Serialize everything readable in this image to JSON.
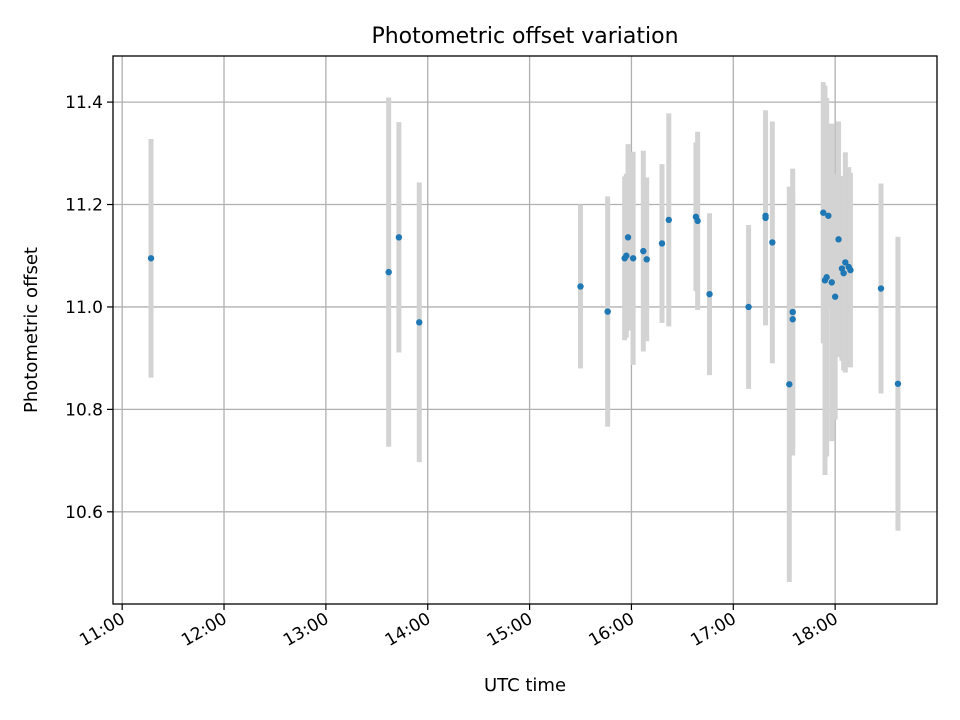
{
  "chart_data": {
    "type": "scatter",
    "title": "Photometric offset variation",
    "xlabel": "UTC time",
    "ylabel": "Photometric offset",
    "xlim_hours": [
      10.91,
      19.0
    ],
    "ylim": [
      10.42,
      11.49
    ],
    "x_ticks": [
      {
        "value": 11,
        "label": "11:00"
      },
      {
        "value": 12,
        "label": "12:00"
      },
      {
        "value": 13,
        "label": "13:00"
      },
      {
        "value": 14,
        "label": "14:00"
      },
      {
        "value": 15,
        "label": "15:00"
      },
      {
        "value": 16,
        "label": "16:00"
      },
      {
        "value": 17,
        "label": "17:00"
      },
      {
        "value": 18,
        "label": "18:00"
      }
    ],
    "y_ticks": [
      {
        "value": 10.6,
        "label": "10.6"
      },
      {
        "value": 10.8,
        "label": "10.8"
      },
      {
        "value": 11.0,
        "label": "11.0"
      },
      {
        "value": 11.2,
        "label": "11.2"
      },
      {
        "value": 11.4,
        "label": "11.4"
      }
    ],
    "grid": true,
    "marker_color": "#1f77b4",
    "errorbar_color": "#d3d3d3",
    "points": [
      {
        "t": "11:17",
        "y": 11.095,
        "err": 0.233
      },
      {
        "t": "13:37",
        "y": 11.068,
        "err": 0.341
      },
      {
        "t": "13:43",
        "y": 11.136,
        "err": 0.225
      },
      {
        "t": "13:55",
        "y": 10.97,
        "err": 0.273
      },
      {
        "t": "15:30",
        "y": 11.04,
        "err": 0.16
      },
      {
        "t": "15:46",
        "y": 10.991,
        "err": 0.225
      },
      {
        "t": "15:56",
        "y": 11.095,
        "err": 0.16
      },
      {
        "t": "15:57",
        "y": 11.1,
        "err": 0.16
      },
      {
        "t": "15:58",
        "y": 11.136,
        "err": 0.182
      },
      {
        "t": "16:01",
        "y": 11.095,
        "err": 0.208
      },
      {
        "t": "16:07",
        "y": 11.109,
        "err": 0.196
      },
      {
        "t": "16:09",
        "y": 11.093,
        "err": 0.16
      },
      {
        "t": "16:18",
        "y": 11.124,
        "err": 0.155
      },
      {
        "t": "16:22",
        "y": 11.17,
        "err": 0.208
      },
      {
        "t": "16:38",
        "y": 11.176,
        "err": 0.145
      },
      {
        "t": "16:39",
        "y": 11.168,
        "err": 0.174
      },
      {
        "t": "16:46",
        "y": 11.025,
        "err": 0.158
      },
      {
        "t": "17:09",
        "y": 11.0,
        "err": 0.16
      },
      {
        "t": "17:19",
        "y": 11.174,
        "err": 0.21
      },
      {
        "t": "17:19",
        "y": 11.178,
        "err": 0.19
      },
      {
        "t": "17:23",
        "y": 11.126,
        "err": 0.236
      },
      {
        "t": "17:33",
        "y": 10.849,
        "err": 0.386
      },
      {
        "t": "17:35",
        "y": 10.99,
        "err": 0.28
      },
      {
        "t": "17:35",
        "y": 10.976,
        "err": 0.25
      },
      {
        "t": "17:53",
        "y": 11.184,
        "err": 0.255
      },
      {
        "t": "17:54",
        "y": 11.052,
        "err": 0.38
      },
      {
        "t": "17:55",
        "y": 11.058,
        "err": 0.35
      },
      {
        "t": "17:56",
        "y": 11.178,
        "err": 0.18
      },
      {
        "t": "17:58",
        "y": 11.048,
        "err": 0.31
      },
      {
        "t": "18:00",
        "y": 11.02,
        "err": 0.24
      },
      {
        "t": "18:02",
        "y": 11.132,
        "err": 0.23
      },
      {
        "t": "18:04",
        "y": 11.075,
        "err": 0.18
      },
      {
        "t": "18:05",
        "y": 11.066,
        "err": 0.19
      },
      {
        "t": "18:06",
        "y": 11.087,
        "err": 0.215
      },
      {
        "t": "18:08",
        "y": 11.078,
        "err": 0.195
      },
      {
        "t": "18:09",
        "y": 11.072,
        "err": 0.19
      },
      {
        "t": "18:27",
        "y": 11.036,
        "err": 0.205
      },
      {
        "t": "18:37",
        "y": 10.85,
        "err": 0.287
      }
    ]
  }
}
